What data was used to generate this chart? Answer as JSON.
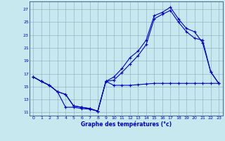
{
  "xlabel": "Graphe des températures (°c)",
  "ylim": [
    10.5,
    28.2
  ],
  "xlim": [
    -0.5,
    23.5
  ],
  "yticks": [
    11,
    13,
    15,
    17,
    19,
    21,
    23,
    25,
    27
  ],
  "xticks": [
    0,
    1,
    2,
    3,
    4,
    5,
    6,
    7,
    8,
    9,
    10,
    11,
    12,
    13,
    14,
    15,
    16,
    17,
    18,
    19,
    20,
    21,
    22,
    23
  ],
  "background_color": "#c8e8f0",
  "grid_color": "#88aabb",
  "line_color": "#0000cc",
  "line1_x": [
    0,
    1,
    2,
    3,
    4,
    5,
    6,
    7,
    8,
    9,
    10,
    11,
    12,
    13,
    14,
    15,
    16,
    17,
    18,
    19,
    20,
    21,
    22,
    23
  ],
  "line1_y": [
    16.5,
    15.8,
    15.2,
    14.2,
    11.8,
    11.8,
    11.6,
    11.5,
    11.2,
    15.8,
    15.2,
    15.2,
    15.2,
    15.3,
    15.4,
    15.5,
    15.5,
    15.5,
    15.5,
    15.5,
    15.5,
    15.5,
    15.5,
    15.5
  ],
  "line2_x": [
    0,
    1,
    2,
    3,
    4,
    5,
    6,
    7,
    8,
    9,
    10,
    11,
    12,
    13,
    14,
    15,
    16,
    17,
    18,
    19,
    20,
    21,
    22,
    23
  ],
  "line2_y": [
    16.5,
    15.8,
    15.2,
    14.2,
    13.8,
    12.0,
    11.8,
    11.6,
    11.2,
    15.8,
    16.5,
    17.8,
    19.5,
    20.5,
    22.2,
    26.0,
    26.5,
    27.3,
    25.5,
    24.0,
    23.5,
    21.8,
    17.3,
    15.5
  ],
  "line3_x": [
    0,
    1,
    2,
    3,
    4,
    5,
    6,
    7,
    8,
    9,
    10,
    11,
    12,
    13,
    14,
    15,
    16,
    17,
    18,
    19,
    20,
    21,
    22,
    23
  ],
  "line3_y": [
    16.5,
    15.8,
    15.2,
    14.2,
    13.8,
    12.0,
    11.8,
    11.6,
    11.2,
    15.8,
    16.0,
    17.2,
    18.5,
    19.8,
    21.5,
    25.5,
    26.2,
    26.8,
    25.0,
    23.5,
    22.5,
    22.2,
    17.3,
    15.5
  ]
}
